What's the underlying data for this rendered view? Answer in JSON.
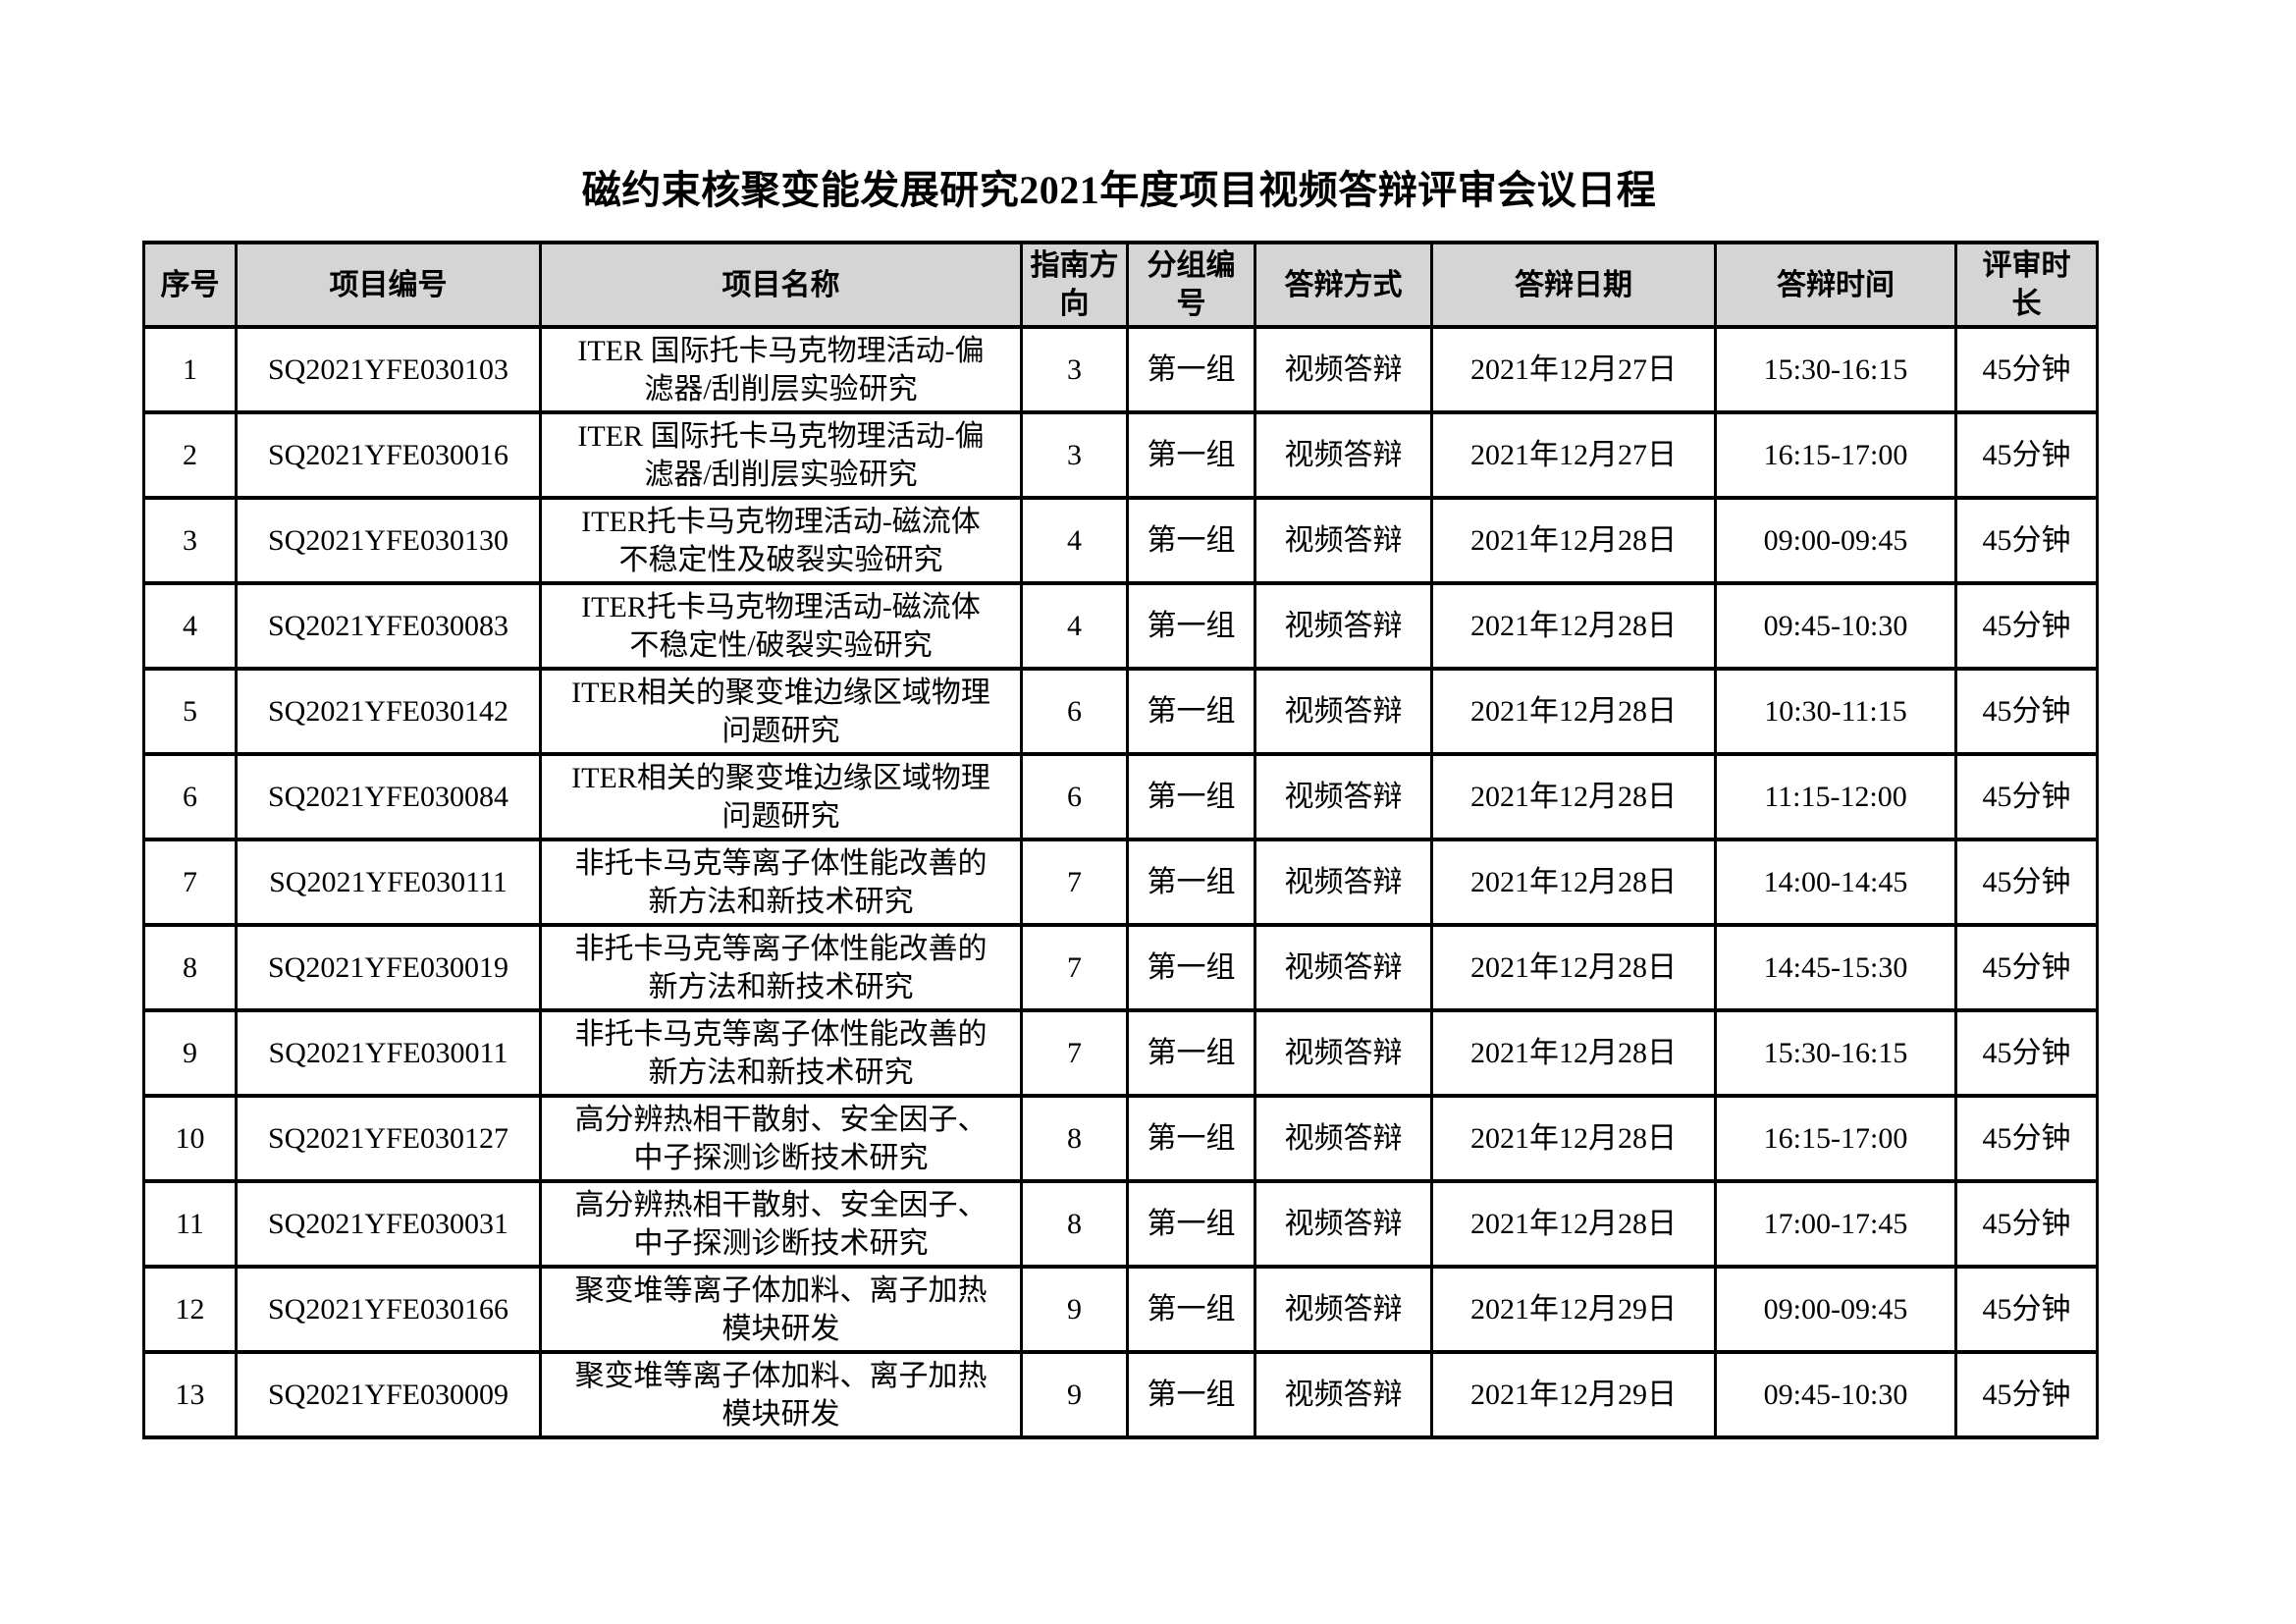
{
  "page": {
    "title": "磁约束核聚变能发展研究2021年度项目视频答辩评审会议日程"
  },
  "table": {
    "headers": [
      "序号",
      "项目编号",
      "项目名称",
      "指南方向",
      "分组编号",
      "答辩方式",
      "答辩日期",
      "答辩时间",
      "评审时长"
    ],
    "rows": [
      [
        "1",
        "SQ2021YFE030103",
        "ITER 国际托卡马克物理活动-偏滤器/刮削层实验研究",
        "3",
        "第一组",
        "视频答辩",
        "2021年12月27日",
        "15:30-16:15",
        "45分钟"
      ],
      [
        "2",
        "SQ2021YFE030016",
        "ITER 国际托卡马克物理活动-偏滤器/刮削层实验研究",
        "3",
        "第一组",
        "视频答辩",
        "2021年12月27日",
        "16:15-17:00",
        "45分钟"
      ],
      [
        "3",
        "SQ2021YFE030130",
        "ITER托卡马克物理活动-磁流体不稳定性及破裂实验研究",
        "4",
        "第一组",
        "视频答辩",
        "2021年12月28日",
        "09:00-09:45",
        "45分钟"
      ],
      [
        "4",
        "SQ2021YFE030083",
        "ITER托卡马克物理活动-磁流体不稳定性/破裂实验研究",
        "4",
        "第一组",
        "视频答辩",
        "2021年12月28日",
        "09:45-10:30",
        "45分钟"
      ],
      [
        "5",
        "SQ2021YFE030142",
        "ITER相关的聚变堆边缘区域物理问题研究",
        "6",
        "第一组",
        "视频答辩",
        "2021年12月28日",
        "10:30-11:15",
        "45分钟"
      ],
      [
        "6",
        "SQ2021YFE030084",
        "ITER相关的聚变堆边缘区域物理问题研究",
        "6",
        "第一组",
        "视频答辩",
        "2021年12月28日",
        "11:15-12:00",
        "45分钟"
      ],
      [
        "7",
        "SQ2021YFE030111",
        "非托卡马克等离子体性能改善的新方法和新技术研究",
        "7",
        "第一组",
        "视频答辩",
        "2021年12月28日",
        "14:00-14:45",
        "45分钟"
      ],
      [
        "8",
        "SQ2021YFE030019",
        "非托卡马克等离子体性能改善的新方法和新技术研究",
        "7",
        "第一组",
        "视频答辩",
        "2021年12月28日",
        "14:45-15:30",
        "45分钟"
      ],
      [
        "9",
        "SQ2021YFE030011",
        "非托卡马克等离子体性能改善的新方法和新技术研究",
        "7",
        "第一组",
        "视频答辩",
        "2021年12月28日",
        "15:30-16:15",
        "45分钟"
      ],
      [
        "10",
        "SQ2021YFE030127",
        "高分辨热相干散射、安全因子、中子探测诊断技术研究",
        "8",
        "第一组",
        "视频答辩",
        "2021年12月28日",
        "16:15-17:00",
        "45分钟"
      ],
      [
        "11",
        "SQ2021YFE030031",
        "高分辨热相干散射、安全因子、中子探测诊断技术研究",
        "8",
        "第一组",
        "视频答辩",
        "2021年12月28日",
        "17:00-17:45",
        "45分钟"
      ],
      [
        "12",
        "SQ2021YFE030166",
        "聚变堆等离子体加料、离子加热模块研发",
        "9",
        "第一组",
        "视频答辩",
        "2021年12月29日",
        "09:00-09:45",
        "45分钟"
      ],
      [
        "13",
        "SQ2021YFE030009",
        "聚变堆等离子体加料、离子加热模块研发",
        "9",
        "第一组",
        "视频答辩",
        "2021年12月29日",
        "09:45-10:30",
        "45分钟"
      ]
    ]
  }
}
